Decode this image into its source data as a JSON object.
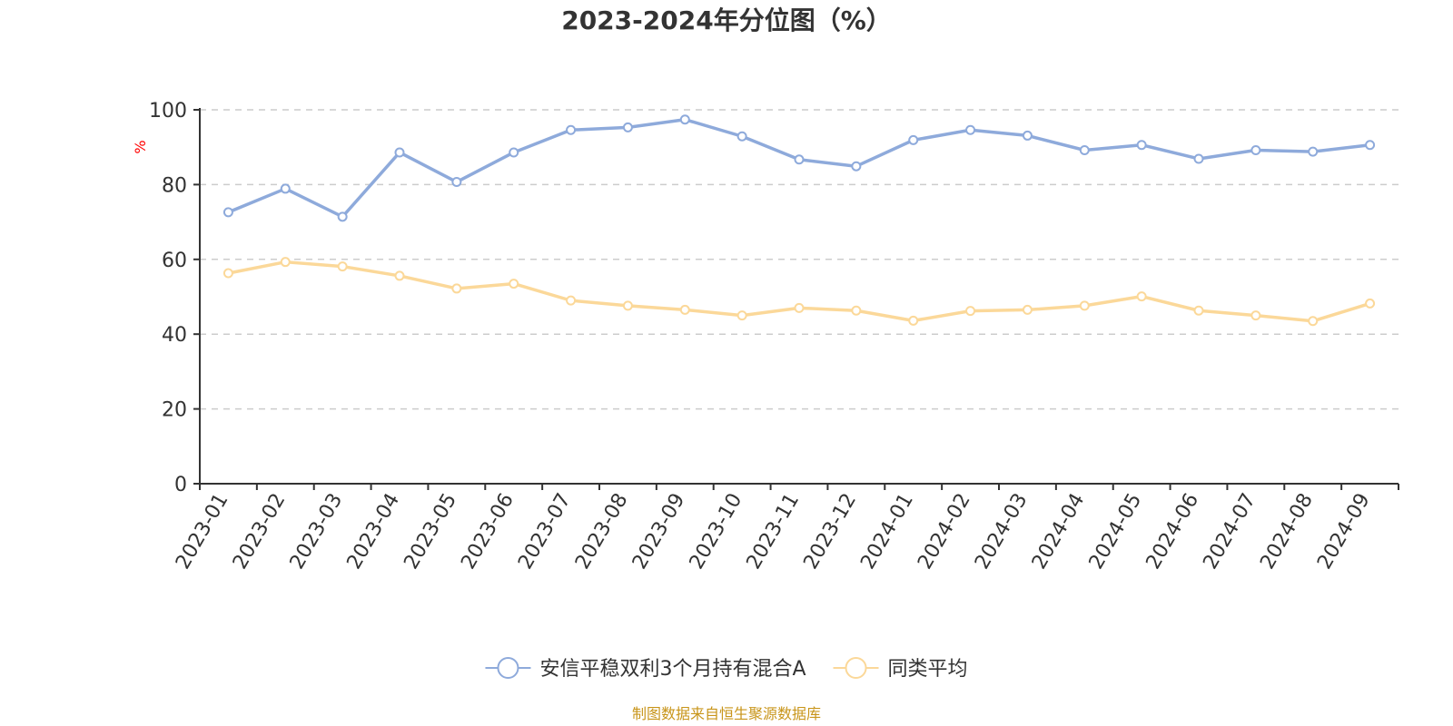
{
  "chart_data": {
    "type": "line",
    "title": "2023-2024年分位图（%）",
    "ylabel": "%",
    "xlabel": "",
    "ylim": [
      0,
      100
    ],
    "yticks": [
      0,
      20,
      40,
      60,
      80,
      100
    ],
    "grid": true,
    "legend_position": "bottom",
    "categories": [
      "2023-01",
      "2023-02",
      "2023-03",
      "2023-04",
      "2023-05",
      "2023-06",
      "2023-07",
      "2023-08",
      "2023-09",
      "2023-10",
      "2023-11",
      "2023-12",
      "2024-01",
      "2024-02",
      "2024-03",
      "2024-04",
      "2024-05",
      "2024-06",
      "2024-07",
      "2024-08",
      "2024-09"
    ],
    "series": [
      {
        "name": "安信平稳双利3个月持有混合A",
        "color": "#8eaadb",
        "values": [
          72.6,
          78.9,
          71.4,
          88.6,
          80.7,
          88.6,
          94.6,
          95.3,
          97.4,
          92.9,
          86.7,
          84.9,
          91.9,
          94.6,
          93.1,
          89.2,
          90.6,
          86.9,
          89.2,
          88.8,
          90.6
        ]
      },
      {
        "name": "同类平均",
        "color": "#fbd899",
        "values": [
          56.3,
          59.3,
          58.1,
          55.6,
          52.2,
          53.5,
          49.0,
          47.6,
          46.5,
          45.0,
          47.0,
          46.3,
          43.6,
          46.2,
          46.5,
          47.6,
          50.1,
          46.3,
          45.0,
          43.5,
          48.2
        ]
      }
    ],
    "source": "制图数据来自恒生聚源数据库"
  }
}
